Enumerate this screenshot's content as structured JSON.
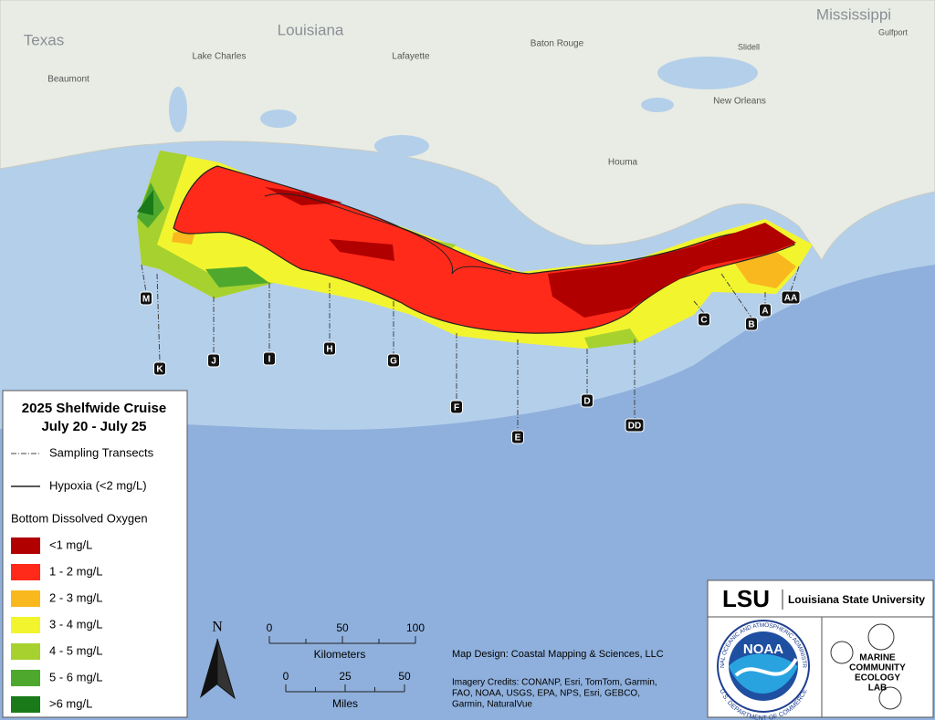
{
  "title": "2025 Shelfwide Cruise",
  "subtitle": "July 20 - July 25",
  "legend": {
    "transects": "Sampling Transects",
    "hypoxia": "Hypoxia (<2 mg/L)",
    "heading": "Bottom Dissolved Oxygen",
    "classes": [
      {
        "label": "<1 mg/L",
        "color": "#b00000"
      },
      {
        "label": "1 - 2 mg/L",
        "color": "#ff2a1a"
      },
      {
        "label": "2 - 3 mg/L",
        "color": "#f9b81d"
      },
      {
        "label": "3 - 4 mg/L",
        "color": "#f2f52e"
      },
      {
        "label": "4 - 5 mg/L",
        "color": "#a6d12f"
      },
      {
        "label": "5 - 6 mg/L",
        "color": "#4ea82e"
      },
      {
        "label": ">6 mg/L",
        "color": "#1a7a1a"
      }
    ]
  },
  "places": [
    "Texas",
    "Louisiana",
    "Mississippi",
    "Baton Rouge",
    "Lake Charles",
    "Lafayette",
    "Beaumont",
    "Slidell",
    "Gulfport",
    "New Orleans",
    "Houma"
  ],
  "transects": [
    "M",
    "K",
    "J",
    "I",
    "H",
    "G",
    "F",
    "E",
    "D",
    "DD",
    "C",
    "B",
    "A",
    "AA"
  ],
  "scale": {
    "north": "N",
    "km_ticks": [
      "0",
      "50",
      "100"
    ],
    "km_label": "Kilometers",
    "mi_ticks": [
      "0",
      "25",
      "50"
    ],
    "mi_label": "Miles"
  },
  "credits": {
    "design": "Map Design: Coastal Mapping & Sciences, LLC",
    "imagery_lines": [
      "Imagery Credits: CONANP, Esri, TomTom, Garmin,",
      "FAO, NOAA, USGS, EPA, NPS, Esri, GEBCO,",
      "Garmin, NaturalVue"
    ]
  },
  "logos": {
    "lsu": "LSU",
    "lsu_name": "Louisiana State University",
    "noaa": "NOAA",
    "noaa_top": "NATIONAL OCEANIC AND ATMOSPHERIC ADMINISTRATION",
    "noaa_bottom": "U.S. DEPARTMENT OF COMMERCE",
    "lab": [
      "MARINE",
      "COMMUNITY",
      "ECOLOGY",
      "LAB"
    ]
  }
}
